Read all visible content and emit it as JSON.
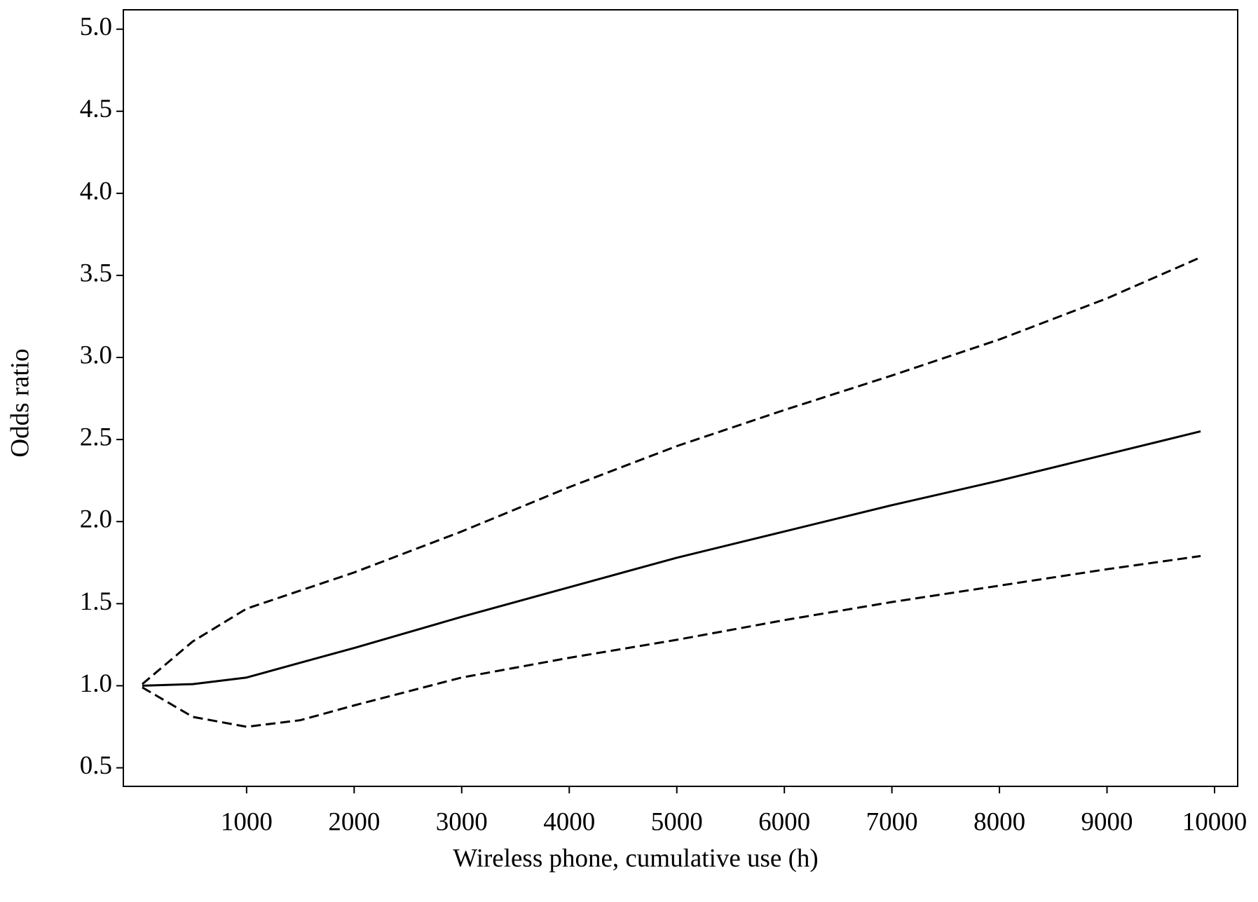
{
  "chart_data": {
    "type": "line",
    "xlabel": "Wireless phone, cumulative use (h)",
    "ylabel": "Odds ratio",
    "x": [
      30,
      500,
      1000,
      1500,
      2000,
      3000,
      4000,
      5000,
      6000,
      7000,
      8000,
      9000,
      9870
    ],
    "series": [
      {
        "color": "#000000",
        "dashed": false,
        "values": [
          1.0,
          1.01,
          1.05,
          1.14,
          1.23,
          1.42,
          1.6,
          1.78,
          1.94,
          2.1,
          2.25,
          2.41,
          2.55
        ]
      },
      {
        "color": "#000000",
        "dashed": true,
        "values": [
          1.01,
          1.27,
          1.47,
          1.58,
          1.69,
          1.94,
          2.21,
          2.46,
          2.68,
          2.89,
          3.11,
          3.36,
          3.61
        ]
      },
      {
        "color": "#000000",
        "dashed": true,
        "values": [
          0.99,
          0.81,
          0.75,
          0.79,
          0.88,
          1.05,
          1.17,
          1.28,
          1.4,
          1.51,
          1.61,
          1.71,
          1.79
        ]
      }
    ],
    "xlim": [
      -146,
      10215
    ],
    "ylim": [
      0.387,
      5.118
    ],
    "xticks": [
      1000,
      2000,
      3000,
      4000,
      5000,
      6000,
      7000,
      8000,
      9000,
      10000
    ],
    "yticks": [
      {
        "value": 0.5,
        "label": "0.5"
      },
      {
        "value": 1,
        "label": "1.0"
      },
      {
        "value": 1.5,
        "label": "1.5"
      },
      {
        "value": 2,
        "label": "2.0"
      },
      {
        "value": 2.5,
        "label": "2.5"
      },
      {
        "value": 3,
        "label": "3.0"
      },
      {
        "value": 3.5,
        "label": "3.5"
      },
      {
        "value": 4,
        "label": "4.0"
      },
      {
        "value": 4.5,
        "label": "4.5"
      },
      {
        "value": 5,
        "label": "5.0"
      }
    ],
    "grid": false
  }
}
